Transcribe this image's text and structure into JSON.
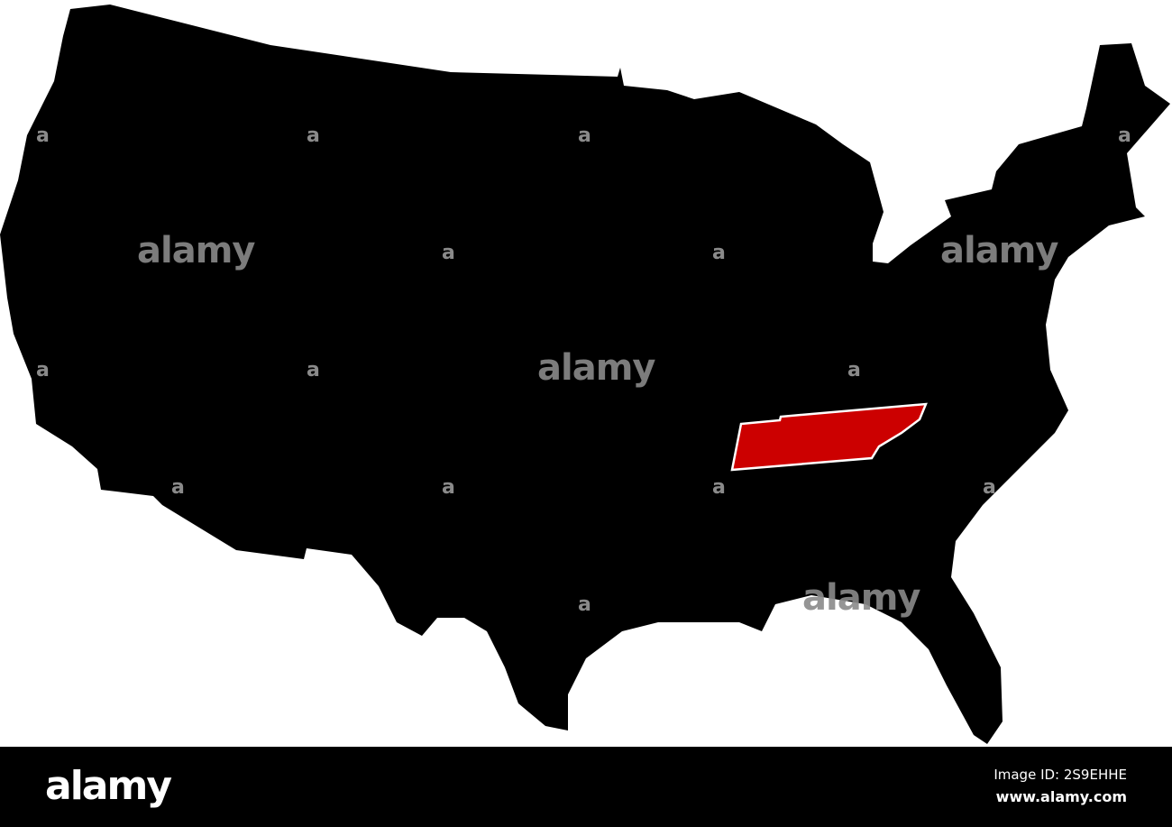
{
  "map": {
    "region": "United States",
    "highlighted_state": "Tennessee",
    "colors": {
      "land": "#000000",
      "highlight": "#cc0000",
      "highlight_border": "#ffffff",
      "background": "#ffffff"
    }
  },
  "watermark": {
    "text": "alamy",
    "small": "a"
  },
  "footer": {
    "logo": "alamy",
    "image_id": "Image ID: 2S9EHHE",
    "site": "www.alamy.com"
  }
}
